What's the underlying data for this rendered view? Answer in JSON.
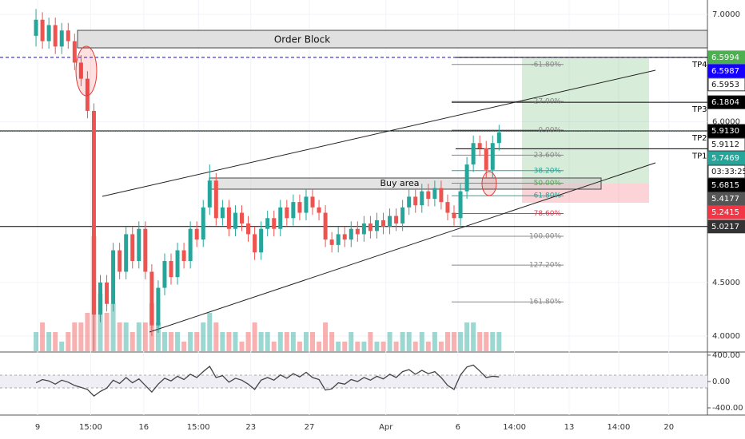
{
  "chart_data": {
    "type": "candlestick",
    "xlim": [
      -5.6,
      104.4
    ],
    "xticks": [
      {
        "value": 0.25,
        "label": "9"
      },
      {
        "value": 8.5,
        "label": "15:00"
      },
      {
        "value": 16.75,
        "label": "16"
      },
      {
        "value": 25.25,
        "label": "15:00"
      },
      {
        "value": 33.4,
        "label": "23"
      },
      {
        "value": 42.5,
        "label": "27"
      },
      {
        "value": 54.4,
        "label": "Apr"
      },
      {
        "value": 65.6,
        "label": "6"
      },
      {
        "value": 74.4,
        "label": "14:00"
      },
      {
        "value": 82.9,
        "label": "13"
      },
      {
        "value": 90.6,
        "label": "14:00"
      },
      {
        "value": 98.4,
        "label": "20"
      }
    ],
    "ylim": [
      3.859,
      7.134
    ],
    "yticks": [
      {
        "value": 7,
        "label": "7.0000"
      },
      {
        "value": 6,
        "label": "6.0000"
      },
      {
        "value": 4.5,
        "label": "4.5000"
      },
      {
        "value": 4,
        "label": "4.0000"
      }
    ],
    "up_color": "#26a69a",
    "down_color": "#ef5350",
    "candles": [
      [
        6.8,
        7.05,
        6.7,
        6.95
      ],
      [
        6.95,
        7.02,
        6.68,
        6.75
      ],
      [
        6.75,
        6.97,
        6.68,
        6.9
      ],
      [
        6.9,
        6.97,
        6.63,
        6.7
      ],
      [
        6.7,
        6.92,
        6.63,
        6.85
      ],
      [
        6.85,
        6.92,
        6.68,
        6.75
      ],
      [
        6.75,
        6.82,
        6.48,
        6.55
      ],
      [
        6.55,
        6.62,
        6.33,
        6.4
      ],
      [
        6.4,
        6.47,
        6.03,
        6.1
      ],
      [
        6.1,
        6.17,
        3.86,
        4.2
      ],
      [
        4.2,
        4.57,
        4.13,
        4.5
      ],
      [
        4.5,
        4.57,
        4.23,
        4.3
      ],
      [
        4.3,
        4.87,
        4.23,
        4.8
      ],
      [
        4.8,
        4.87,
        4.53,
        4.6
      ],
      [
        4.6,
        5.02,
        4.53,
        4.95
      ],
      [
        4.95,
        5.02,
        4.63,
        4.7
      ],
      [
        4.7,
        5.07,
        4.63,
        5.0
      ],
      [
        5.0,
        5.07,
        4.53,
        4.6
      ],
      [
        4.6,
        4.67,
        4.0,
        4.1
      ],
      [
        4.1,
        4.52,
        4.03,
        4.45
      ],
      [
        4.45,
        4.77,
        4.38,
        4.7
      ],
      [
        4.7,
        4.77,
        4.48,
        4.55
      ],
      [
        4.55,
        4.87,
        4.48,
        4.8
      ],
      [
        4.8,
        4.87,
        4.63,
        4.7
      ],
      [
        4.7,
        5.07,
        4.63,
        5.0
      ],
      [
        5.0,
        5.07,
        4.83,
        4.9
      ],
      [
        4.9,
        5.27,
        4.83,
        5.2
      ],
      [
        5.2,
        5.6,
        5.13,
        5.45
      ],
      [
        5.45,
        5.52,
        5.03,
        5.1
      ],
      [
        5.1,
        5.27,
        5.03,
        5.2
      ],
      [
        5.2,
        5.27,
        4.93,
        5.0
      ],
      [
        5.0,
        5.22,
        4.93,
        5.15
      ],
      [
        5.15,
        5.22,
        4.98,
        5.05
      ],
      [
        5.05,
        5.12,
        4.88,
        4.95
      ],
      [
        4.95,
        5.02,
        4.71,
        4.78
      ],
      [
        4.78,
        5.07,
        4.71,
        5.0
      ],
      [
        5.0,
        5.17,
        4.93,
        5.1
      ],
      [
        5.1,
        5.17,
        4.93,
        5.0
      ],
      [
        5.0,
        5.27,
        4.93,
        5.2
      ],
      [
        5.2,
        5.27,
        5.03,
        5.1
      ],
      [
        5.1,
        5.32,
        5.03,
        5.25
      ],
      [
        5.25,
        5.32,
        5.08,
        5.15
      ],
      [
        5.15,
        5.37,
        5.08,
        5.3
      ],
      [
        5.3,
        5.37,
        5.13,
        5.2
      ],
      [
        5.2,
        5.27,
        5.08,
        5.15
      ],
      [
        5.15,
        5.22,
        4.83,
        4.9
      ],
      [
        4.9,
        4.97,
        4.78,
        4.85
      ],
      [
        4.85,
        5.02,
        4.78,
        4.95
      ],
      [
        4.95,
        5.02,
        4.83,
        4.9
      ],
      [
        4.9,
        5.07,
        4.83,
        5.0
      ],
      [
        5.0,
        5.07,
        4.88,
        4.95
      ],
      [
        4.95,
        5.12,
        4.88,
        5.05
      ],
      [
        5.05,
        5.12,
        4.91,
        4.98
      ],
      [
        4.98,
        5.15,
        4.91,
        5.08
      ],
      [
        5.08,
        5.15,
        4.95,
        5.02
      ],
      [
        5.02,
        5.19,
        4.95,
        5.12
      ],
      [
        5.12,
        5.19,
        4.98,
        5.05
      ],
      [
        5.05,
        5.27,
        4.98,
        5.2
      ],
      [
        5.2,
        5.37,
        5.13,
        5.3
      ],
      [
        5.3,
        5.37,
        5.15,
        5.22
      ],
      [
        5.22,
        5.42,
        5.15,
        5.35
      ],
      [
        5.35,
        5.42,
        5.21,
        5.28
      ],
      [
        5.28,
        5.45,
        5.21,
        5.38
      ],
      [
        5.38,
        5.45,
        5.18,
        5.25
      ],
      [
        5.25,
        5.32,
        5.08,
        5.15
      ],
      [
        5.15,
        5.22,
        5.03,
        5.1
      ],
      [
        5.1,
        5.42,
        5.03,
        5.35
      ],
      [
        5.35,
        5.67,
        5.28,
        5.6
      ],
      [
        5.6,
        5.87,
        5.53,
        5.8
      ],
      [
        5.8,
        5.87,
        5.68,
        5.75
      ],
      [
        5.75,
        5.82,
        5.48,
        5.55
      ],
      [
        5.55,
        5.87,
        5.48,
        5.8
      ],
      [
        5.8,
        5.97,
        5.73,
        5.9
      ]
    ],
    "volume": [
      2,
      3,
      2,
      2,
      1,
      2,
      3,
      3,
      4,
      12,
      6,
      4,
      5,
      3,
      3,
      2,
      3,
      3,
      5,
      3,
      2,
      2,
      2,
      1,
      2,
      2,
      3,
      4,
      3,
      2,
      2,
      2,
      1,
      2,
      3,
      2,
      2,
      1,
      2,
      2,
      2,
      1,
      2,
      2,
      1,
      3,
      2,
      1,
      1,
      2,
      1,
      1,
      2,
      1,
      1,
      2,
      1,
      2,
      2,
      1,
      2,
      1,
      2,
      1,
      2,
      2,
      2,
      3,
      3,
      2,
      2,
      2,
      2
    ],
    "osc": {
      "values": [
        -20,
        30,
        10,
        -40,
        20,
        -10,
        -60,
        -90,
        -120,
        -220,
        -150,
        -100,
        20,
        -30,
        60,
        -20,
        40,
        -60,
        -160,
        -40,
        50,
        10,
        80,
        30,
        110,
        60,
        150,
        230,
        60,
        90,
        -10,
        50,
        20,
        -40,
        -120,
        20,
        60,
        20,
        100,
        50,
        120,
        70,
        140,
        60,
        30,
        -130,
        -110,
        -20,
        -40,
        30,
        0,
        60,
        20,
        80,
        40,
        110,
        60,
        150,
        180,
        110,
        170,
        120,
        150,
        60,
        -60,
        -120,
        100,
        220,
        250,
        160,
        60,
        80,
        70
      ],
      "ylim": [
        -509,
        436
      ],
      "yticks": [
        {
          "value": 400,
          "label": "400.00"
        },
        {
          "value": 0,
          "label": "0.00"
        },
        {
          "value": -400,
          "label": "-400.00"
        }
      ],
      "color": "#444444"
    },
    "price_labels": [
      {
        "value": 6.5994,
        "label": "6.5994",
        "color": "#4caf50"
      },
      {
        "value": 6.5987,
        "label": "6.5987",
        "color": "#1500ff"
      },
      {
        "value": 6.5953,
        "label": "6.5953",
        "color": "#ffffff"
      },
      {
        "value": 6.1804,
        "label": "6.1804",
        "color": "#000000"
      },
      {
        "value": 5.913,
        "label": "5.9130",
        "color": "#000000"
      },
      {
        "value": 5.9112,
        "label": "5.9112",
        "color": "#ffffff"
      },
      {
        "value": 5.7469,
        "label": "5.7469",
        "color": "#26a69a"
      },
      {
        "value": 5.6815,
        "label": "5.6815",
        "color": "#000000"
      },
      {
        "value": 5.4177,
        "label": "5.4177",
        "color": "#555555"
      },
      {
        "value": 5.2415,
        "label": "5.2415",
        "color": "#f23645"
      },
      {
        "value": 5.0217,
        "label": "5.0217",
        "color": "#333333"
      }
    ],
    "countdown": "03:33:25",
    "order_block": "Order Block",
    "buy_area": "Buy area",
    "tp_labels": [
      "TP4",
      "TP3",
      "TP2",
      "TP1"
    ],
    "fib_levels": [
      {
        "value": -61.8,
        "label": "-61.80%",
        "color": "#888888"
      },
      {
        "value": -27,
        "label": "-27.00%",
        "color": "#888888"
      },
      {
        "value": 0,
        "label": "0.00%",
        "color": "#888888"
      },
      {
        "value": 23.6,
        "label": "23.60%",
        "color": "#888888"
      },
      {
        "value": 38.2,
        "label": "38.20%",
        "color": "#26a69a"
      },
      {
        "value": 50,
        "label": "50.00%",
        "color": "#4caf50"
      },
      {
        "value": 61.8,
        "label": "61.80%",
        "color": "#26a69a"
      },
      {
        "value": 78.6,
        "label": "78.60%",
        "color": "#f23645"
      },
      {
        "value": 100,
        "label": "100.00%",
        "color": "#888888"
      },
      {
        "value": 127.2,
        "label": "127.20%",
        "color": "#888888"
      },
      {
        "value": 161.8,
        "label": "161.80%",
        "color": "#888888"
      }
    ]
  }
}
